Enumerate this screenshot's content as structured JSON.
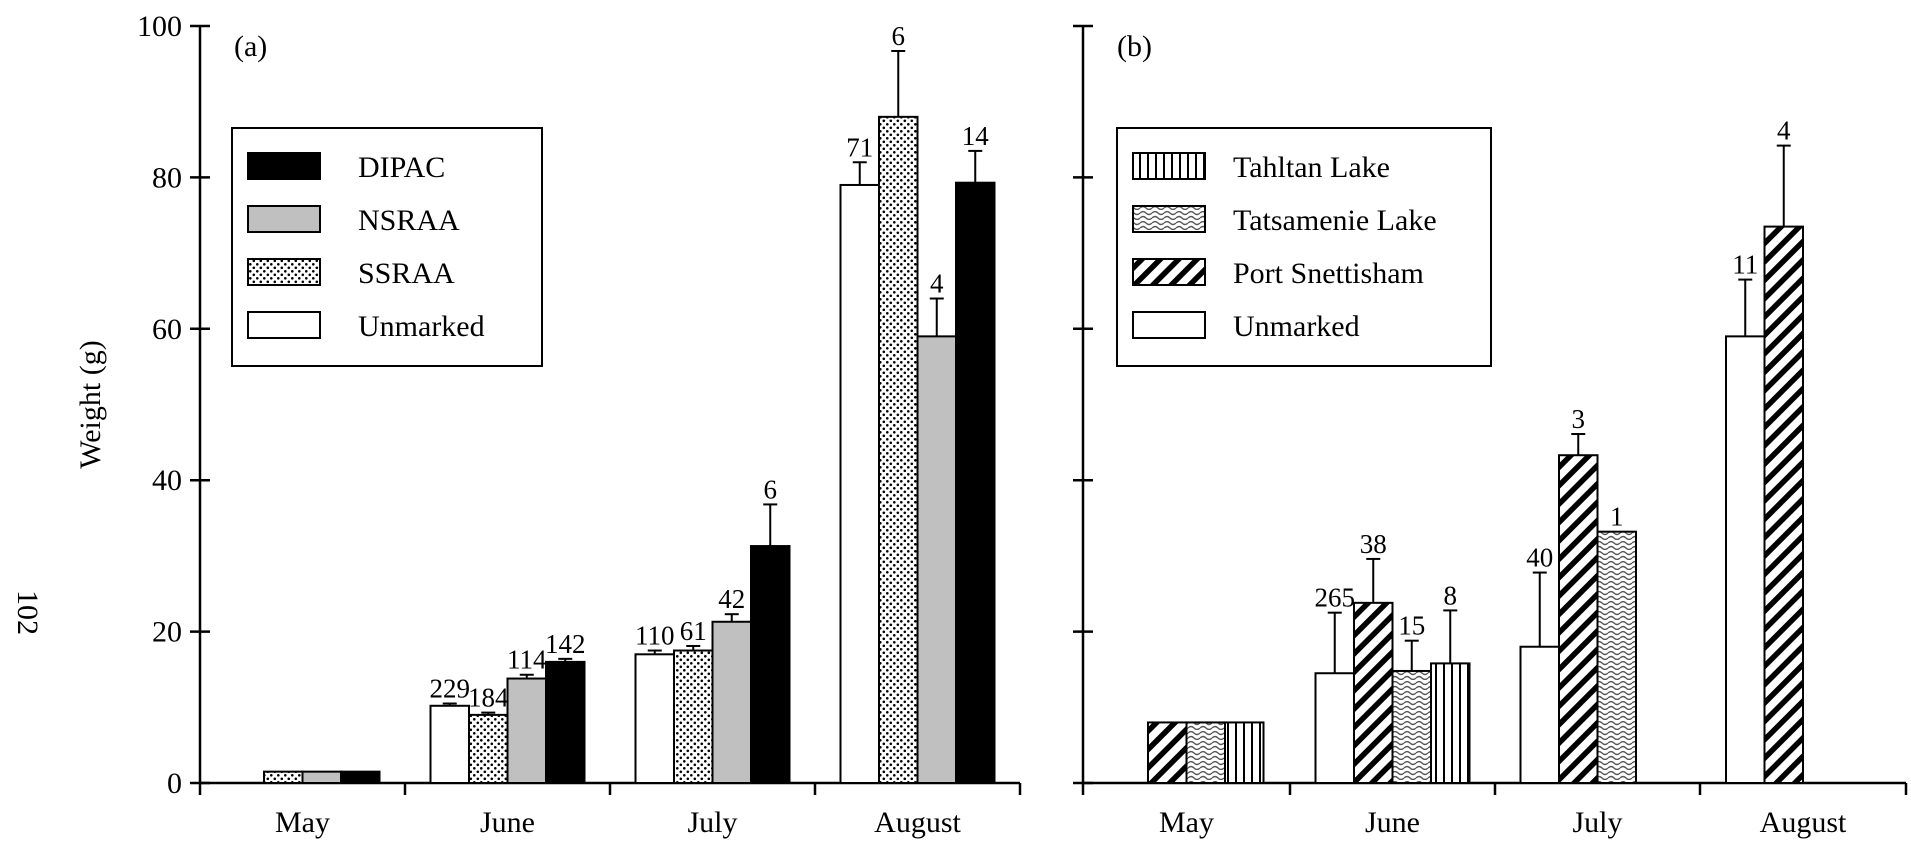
{
  "page_number": "102",
  "patterns": {
    "DIPAC": "solid-black",
    "NSRAA": "solid-gray",
    "SSRAA": "dots",
    "Unmarked": "white",
    "Tahltan Lake": "vertical-lines",
    "Tatsamenie Lake": "wave-hatch",
    "Port Snettisham": "diagonal-hatch"
  },
  "colors": {
    "gray_fill": "#c0c0c0",
    "ink": "#000000",
    "background": "#ffffff"
  },
  "chart_data": [
    {
      "type": "bar",
      "panel_label": "(a)",
      "ylabel": "Weight (g)",
      "ylim": [
        0,
        100
      ],
      "yticks": [
        "0",
        "20",
        "40",
        "60",
        "80",
        "100"
      ],
      "categories": [
        "May",
        "June",
        "July",
        "August"
      ],
      "legend_order": [
        "DIPAC",
        "NSRAA",
        "SSRAA",
        "Unmarked"
      ],
      "legend_position": "top-left",
      "series": [
        {
          "name": "Unmarked",
          "values": [
            null,
            10.2,
            17.0,
            79.0
          ],
          "errors": [
            null,
            0.3,
            0.5,
            3.0
          ],
          "n": [
            null,
            "229",
            "110",
            "71"
          ]
        },
        {
          "name": "SSRAA",
          "values": [
            1.5,
            9.0,
            17.5,
            88.0
          ],
          "errors": [
            null,
            0.3,
            0.6,
            8.7
          ],
          "n": [
            null,
            "184",
            "61",
            "6"
          ]
        },
        {
          "name": "NSRAA",
          "values": [
            1.5,
            13.8,
            21.3,
            59.0
          ],
          "errors": [
            null,
            0.5,
            1.0,
            5.0
          ],
          "n": [
            null,
            "114",
            "42",
            "4"
          ]
        },
        {
          "name": "DIPAC",
          "values": [
            1.5,
            16.0,
            31.3,
            79.3
          ],
          "errors": [
            null,
            0.4,
            5.5,
            4.2
          ],
          "n": [
            null,
            "142",
            "6",
            "14"
          ]
        }
      ]
    },
    {
      "type": "bar",
      "panel_label": "(b)",
      "ylabel": "",
      "ylim": [
        0,
        100
      ],
      "categories": [
        "May",
        "June",
        "July",
        "August"
      ],
      "legend_order": [
        "Tahltan Lake",
        "Tatsamenie Lake",
        "Port Snettisham",
        "Unmarked"
      ],
      "legend_position": "top-left",
      "series": [
        {
          "name": "Unmarked",
          "values": [
            null,
            14.5,
            18.0,
            59.0
          ],
          "errors": [
            null,
            8.0,
            9.8,
            7.5
          ],
          "n": [
            null,
            "265",
            "40",
            "11"
          ]
        },
        {
          "name": "Port Snettisham",
          "values": [
            8.0,
            23.8,
            43.3,
            73.5
          ],
          "errors": [
            null,
            5.8,
            2.8,
            10.7
          ],
          "n": [
            null,
            "38",
            "3",
            "4"
          ]
        },
        {
          "name": "Tatsamenie Lake",
          "values": [
            8.0,
            14.8,
            33.2,
            null
          ],
          "errors": [
            null,
            4.0,
            null,
            null
          ],
          "n": [
            null,
            "15",
            "1",
            null
          ]
        },
        {
          "name": "Tahltan Lake",
          "values": [
            8.0,
            15.8,
            null,
            null
          ],
          "errors": [
            null,
            7.0,
            null,
            null
          ],
          "n": [
            null,
            "8",
            null,
            null
          ]
        }
      ]
    }
  ]
}
